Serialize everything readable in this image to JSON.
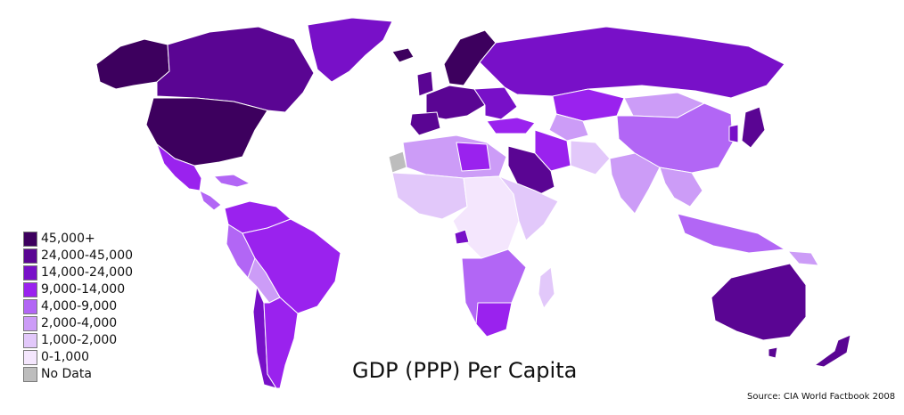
{
  "title": "GDP (PPP) Per Capita",
  "source": "Source: CIA World Factbook 2008",
  "legend": [
    {
      "label": "45,000+",
      "color": "#3d005e"
    },
    {
      "label": "24,000-45,000",
      "color": "#5a0593"
    },
    {
      "label": "14,000-24,000",
      "color": "#7810c8"
    },
    {
      "label": "9,000-14,000",
      "color": "#9a22ee"
    },
    {
      "label": "4,000-9,000",
      "color": "#b266f5"
    },
    {
      "label": "2,000-4,000",
      "color": "#cc9cf7"
    },
    {
      "label": "1,000-2,000",
      "color": "#e2c8fa"
    },
    {
      "label": "0-1,000",
      "color": "#f4e6fd"
    },
    {
      "label": "No Data",
      "color": "#bdbdbd"
    }
  ]
}
